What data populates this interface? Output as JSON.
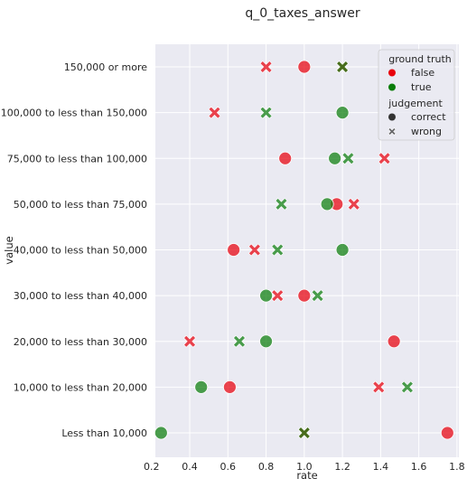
{
  "chart_data": {
    "type": "scatter",
    "title": "q_0_taxes_answer",
    "xlabel": "rate",
    "ylabel": "value",
    "xlim": [
      0.22,
      1.81
    ],
    "x_ticks": [
      "0.2",
      "0.4",
      "0.6",
      "0.8",
      "1.0",
      "1.2",
      "1.4",
      "1.6",
      "1.8"
    ],
    "categories": [
      "150,000 or more",
      "100,000 to less than 150,000",
      "75,000 to less than 100,000",
      "50,000 to less than 75,000",
      "40,000 to less than 50,000",
      "30,000 to less than 40,000",
      "20,000 to less than 30,000",
      "10,000 to less than 20,000",
      "Less than 10,000"
    ],
    "grid": true,
    "legend": {
      "placement": "top-right",
      "hue_title": "ground truth",
      "hue_entries": [
        {
          "label": "false",
          "color": "#e8000b"
        },
        {
          "label": "true",
          "color": "#0a7d0a"
        }
      ],
      "style_title": "judgement",
      "style_entries": [
        {
          "label": "correct",
          "marker": "circle"
        },
        {
          "label": "wrong",
          "marker": "x"
        }
      ]
    },
    "colors": {
      "false": "#e8000b",
      "true": "#0a7d0a",
      "background": "#eaeaf2",
      "grid": "#ffffff"
    },
    "series": [
      {
        "hue": "false",
        "judgement": "correct",
        "points": [
          {
            "category": "150,000 or more",
            "x": 1.0
          },
          {
            "category": "75,000 to less than 100,000",
            "x": 0.9
          },
          {
            "category": "50,000 to less than 75,000",
            "x": 1.17
          },
          {
            "category": "40,000 to less than 50,000",
            "x": 0.63
          },
          {
            "category": "30,000 to less than 40,000",
            "x": 1.0
          },
          {
            "category": "20,000 to less than 30,000",
            "x": 1.47
          },
          {
            "category": "10,000 to less than 20,000",
            "x": 0.61
          },
          {
            "category": "Less than 10,000",
            "x": 1.75
          }
        ]
      },
      {
        "hue": "false",
        "judgement": "wrong",
        "points": [
          {
            "category": "150,000 or more",
            "x": 0.8
          },
          {
            "category": "150,000 or more",
            "x": 1.2
          },
          {
            "category": "100,000 to less than 150,000",
            "x": 0.53
          },
          {
            "category": "75,000 to less than 100,000",
            "x": 1.42
          },
          {
            "category": "50,000 to less than 75,000",
            "x": 1.26
          },
          {
            "category": "40,000 to less than 50,000",
            "x": 0.74
          },
          {
            "category": "30,000 to less than 40,000",
            "x": 0.86
          },
          {
            "category": "20,000 to less than 30,000",
            "x": 0.4
          },
          {
            "category": "10,000 to less than 20,000",
            "x": 1.39
          },
          {
            "category": "Less than 10,000",
            "x": 1.0
          }
        ]
      },
      {
        "hue": "true",
        "judgement": "correct",
        "points": [
          {
            "category": "100,000 to less than 150,000",
            "x": 1.2
          },
          {
            "category": "75,000 to less than 100,000",
            "x": 1.16
          },
          {
            "category": "50,000 to less than 75,000",
            "x": 1.12
          },
          {
            "category": "40,000 to less than 50,000",
            "x": 1.2
          },
          {
            "category": "30,000 to less than 40,000",
            "x": 0.8
          },
          {
            "category": "20,000 to less than 30,000",
            "x": 0.8
          },
          {
            "category": "10,000 to less than 20,000",
            "x": 0.46
          },
          {
            "category": "Less than 10,000",
            "x": 0.25
          }
        ]
      },
      {
        "hue": "true",
        "judgement": "wrong",
        "points": [
          {
            "category": "150,000 or more",
            "x": 1.2
          },
          {
            "category": "100,000 to less than 150,000",
            "x": 0.8
          },
          {
            "category": "75,000 to less than 100,000",
            "x": 1.23
          },
          {
            "category": "50,000 to less than 75,000",
            "x": 0.88
          },
          {
            "category": "40,000 to less than 50,000",
            "x": 0.86
          },
          {
            "category": "30,000 to less than 40,000",
            "x": 1.07
          },
          {
            "category": "20,000 to less than 30,000",
            "x": 0.66
          },
          {
            "category": "10,000 to less than 20,000",
            "x": 1.54
          },
          {
            "category": "Less than 10,000",
            "x": 1.0
          }
        ]
      }
    ]
  }
}
